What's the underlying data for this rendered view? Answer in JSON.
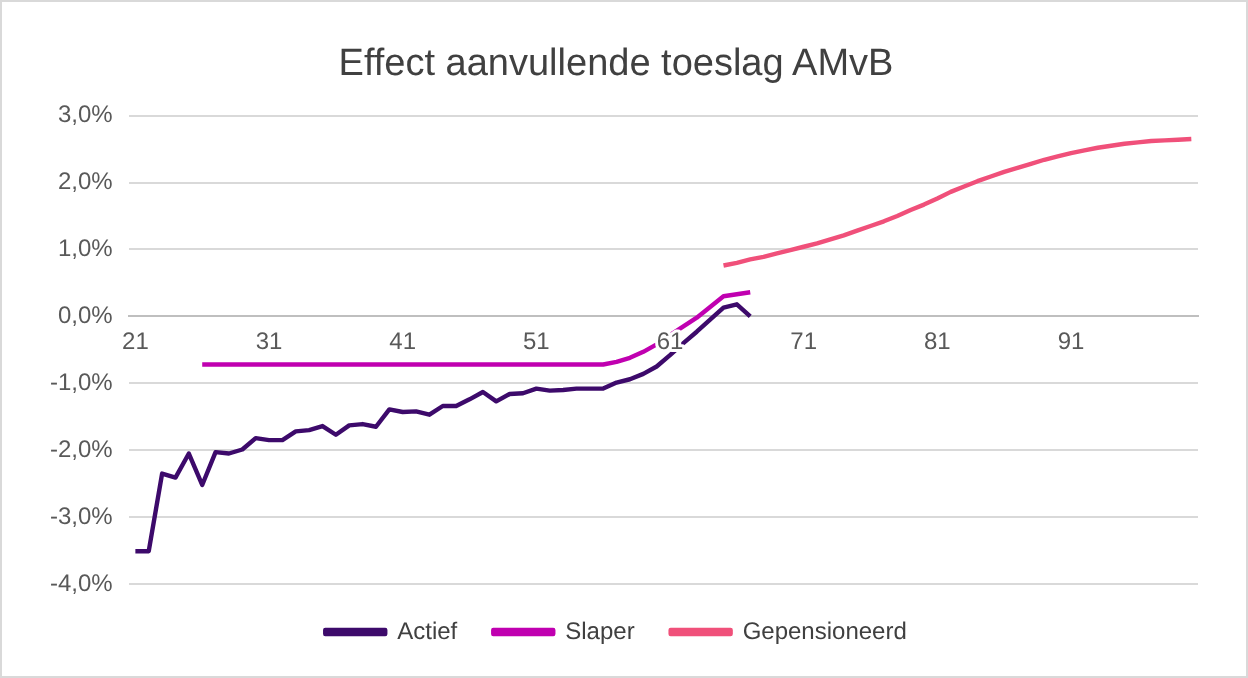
{
  "chart_data": {
    "type": "line",
    "title": "Effect aanvullende toeslag AMvB",
    "categories": [
      "21",
      null,
      null,
      null,
      null,
      null,
      null,
      null,
      null,
      null,
      "31",
      null,
      null,
      null,
      null,
      null,
      null,
      null,
      null,
      null,
      "41",
      null,
      null,
      null,
      null,
      null,
      null,
      null,
      null,
      null,
      "51",
      null,
      null,
      null,
      null,
      null,
      null,
      null,
      null,
      null,
      "61",
      null,
      null,
      null,
      null,
      null,
      null,
      null,
      null,
      null,
      "71",
      null,
      null,
      null,
      null,
      null,
      null,
      null,
      null,
      null,
      "81",
      null,
      null,
      null,
      null,
      null,
      null,
      null,
      null,
      null,
      "91",
      null,
      null,
      null,
      null,
      null,
      null,
      null,
      null,
      null
    ],
    "series": [
      {
        "name": "Actief",
        "color": "#3d0a6b",
        "values": [
          -3.51,
          -3.51,
          -2.35,
          -2.41,
          -2.05,
          -2.52,
          -2.03,
          -2.05,
          -1.99,
          -1.82,
          -1.85,
          -1.85,
          -1.72,
          -1.7,
          -1.64,
          -1.77,
          -1.63,
          -1.61,
          -1.65,
          -1.39,
          -1.43,
          -1.42,
          -1.47,
          -1.34,
          -1.34,
          -1.24,
          -1.13,
          -1.27,
          -1.16,
          -1.15,
          -1.08,
          -1.11,
          -1.1,
          -1.08,
          -1.08,
          -1.08,
          -0.99,
          -0.94,
          -0.86,
          -0.75,
          -0.58,
          -0.4,
          -0.23,
          -0.05,
          0.13,
          0.18,
          0.0,
          null,
          null,
          null,
          null,
          null,
          null,
          null,
          null,
          null,
          null,
          null,
          null,
          null,
          null,
          null,
          null,
          null,
          null,
          null,
          null,
          null,
          null,
          null,
          null,
          null,
          null,
          null,
          null,
          null,
          null,
          null,
          null,
          null
        ]
      },
      {
        "name": "Slaper",
        "color": "#c000b0",
        "values": [
          null,
          null,
          null,
          null,
          null,
          -0.72,
          -0.72,
          -0.72,
          -0.72,
          -0.72,
          -0.72,
          -0.72,
          -0.72,
          -0.72,
          -0.72,
          -0.72,
          -0.72,
          -0.72,
          -0.72,
          -0.72,
          -0.72,
          -0.72,
          -0.72,
          -0.72,
          -0.72,
          -0.72,
          -0.72,
          -0.72,
          -0.72,
          -0.72,
          -0.72,
          -0.72,
          -0.72,
          -0.72,
          -0.72,
          -0.72,
          -0.68,
          -0.62,
          -0.53,
          -0.42,
          -0.28,
          -0.15,
          -0.02,
          0.14,
          0.3,
          0.33,
          0.36,
          null,
          null,
          null,
          null,
          null,
          null,
          null,
          null,
          null,
          null,
          null,
          null,
          null,
          null,
          null,
          null,
          null,
          null,
          null,
          null,
          null,
          null,
          null,
          null,
          null,
          null,
          null,
          null,
          null,
          null,
          null,
          null,
          null
        ]
      },
      {
        "name": "Gepensioneerd",
        "color": "#f0507a",
        "values": [
          null,
          null,
          null,
          null,
          null,
          null,
          null,
          null,
          null,
          null,
          null,
          null,
          null,
          null,
          null,
          null,
          null,
          null,
          null,
          null,
          null,
          null,
          null,
          null,
          null,
          null,
          null,
          null,
          null,
          null,
          null,
          null,
          null,
          null,
          null,
          null,
          null,
          null,
          null,
          null,
          null,
          null,
          null,
          null,
          0.76,
          0.8,
          0.85,
          0.89,
          0.94,
          0.99,
          1.04,
          1.09,
          1.15,
          1.21,
          1.28,
          1.35,
          1.42,
          1.5,
          1.59,
          1.67,
          1.76,
          1.86,
          1.94,
          2.02,
          2.09,
          2.16,
          2.22,
          2.28,
          2.34,
          2.39,
          2.44,
          2.48,
          2.52,
          2.55,
          2.58,
          2.6,
          2.62,
          2.63,
          2.64,
          2.65
        ]
      }
    ],
    "ylim": [
      -4,
      3
    ],
    "yticks": [
      {
        "value": -4,
        "label": "-4,0%"
      },
      {
        "value": -3,
        "label": "-3,0%"
      },
      {
        "value": -2,
        "label": "-2,0%"
      },
      {
        "value": -1,
        "label": "-1,0%"
      },
      {
        "value": 0,
        "label": "0,0%"
      },
      {
        "value": 1,
        "label": "1,0%"
      },
      {
        "value": 2,
        "label": "2,0%"
      },
      {
        "value": 3,
        "label": "3,0%"
      }
    ],
    "grid": "y",
    "legend": "bottom",
    "marker": "none",
    "line_style": "solid"
  }
}
